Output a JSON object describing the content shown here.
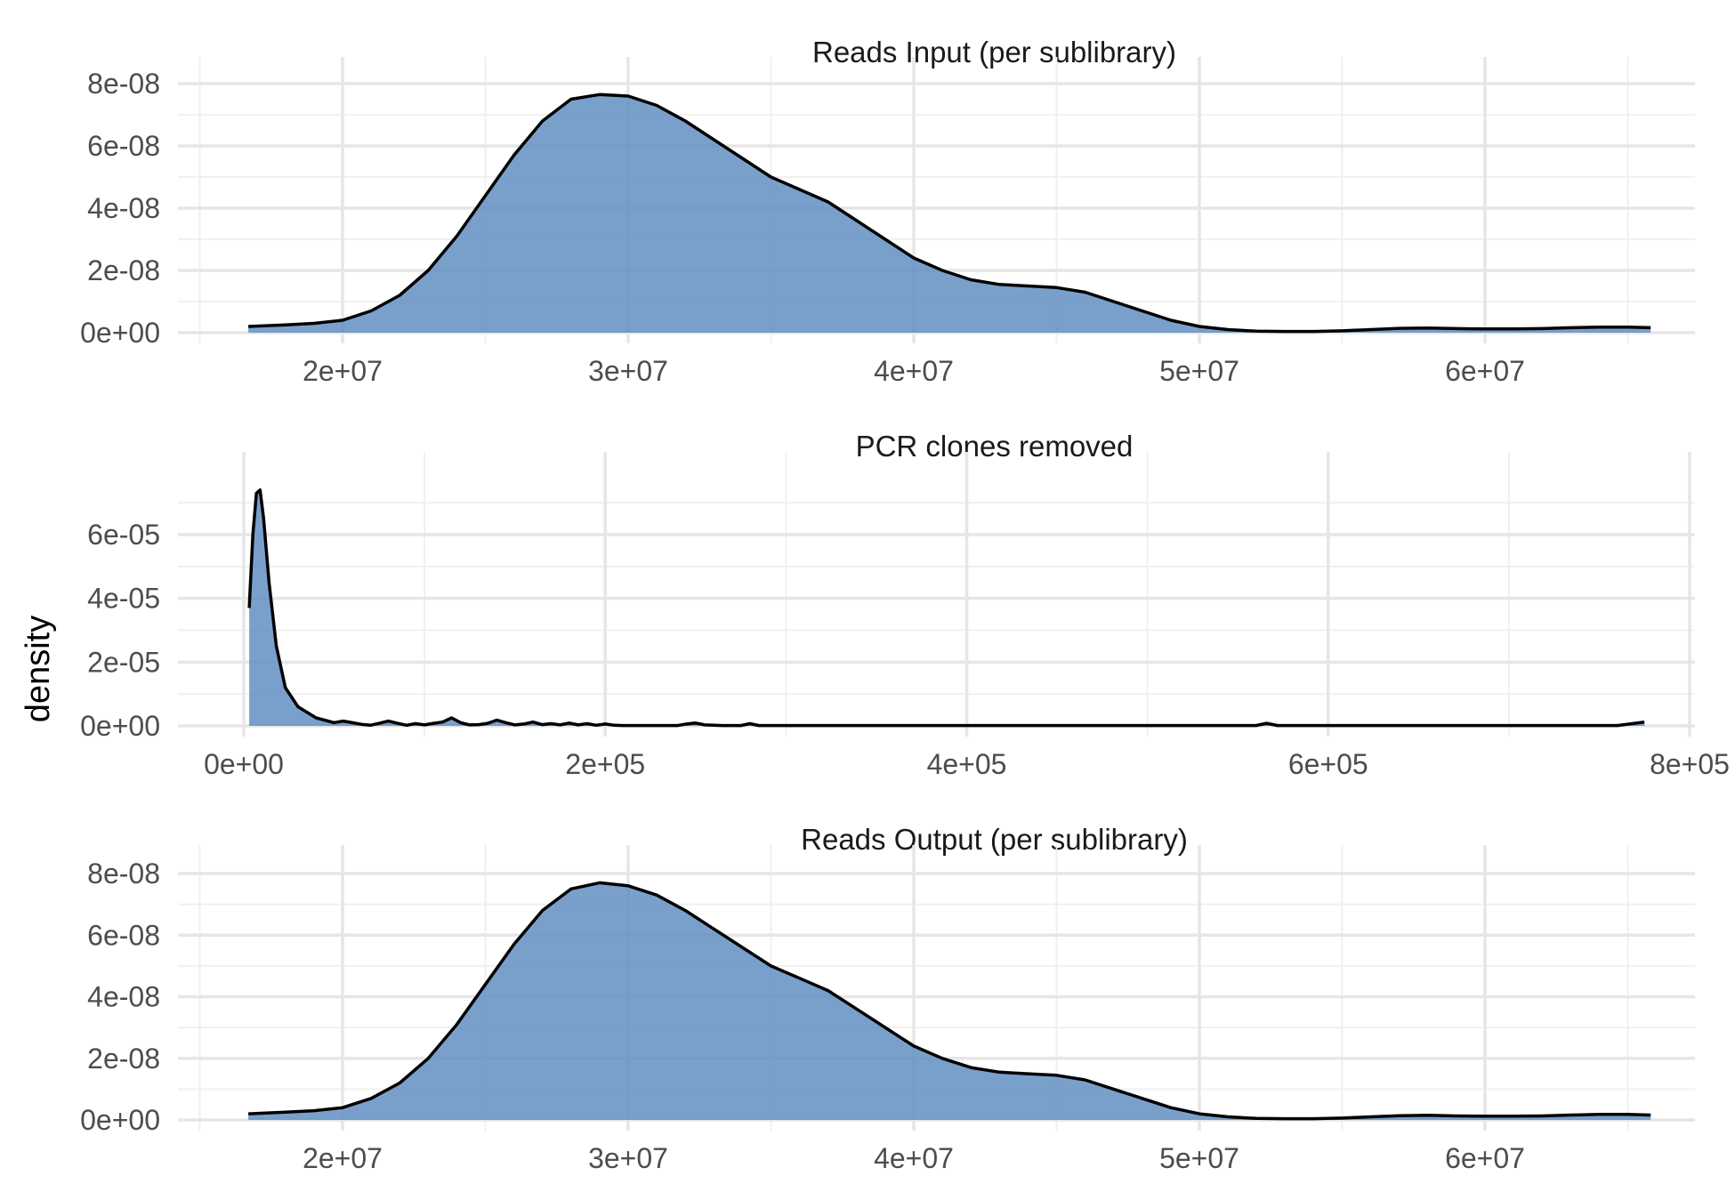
{
  "ylabel": "density",
  "style": {
    "fill": "#5b8bc0",
    "fill_opacity": 0.82,
    "line": "#000000",
    "grid": "#e6e6e6"
  },
  "chart_data": [
    {
      "type": "area",
      "title": "Reads Input (per sublibrary)",
      "xlim": [
        15000000,
        65000000
      ],
      "ylim": [
        0,
        8e-08
      ],
      "xticks": [
        20000000,
        30000000,
        40000000,
        50000000,
        60000000
      ],
      "xtick_labels": [
        "2e+07",
        "3e+07",
        "4e+07",
        "5e+07",
        "6e+07"
      ],
      "yticks": [
        0,
        2e-08,
        4e-08,
        6e-08,
        8e-08
      ],
      "ytick_labels": [
        "0e+00",
        "2e-08",
        "4e-08",
        "6e-08",
        "8e-08"
      ],
      "x": [
        16700000,
        18000000,
        19000000,
        20000000,
        21000000,
        22000000,
        23000000,
        24000000,
        25000000,
        26000000,
        27000000,
        28000000,
        29000000,
        30000000,
        31000000,
        32000000,
        33000000,
        34000000,
        35000000,
        36000000,
        37000000,
        38000000,
        39000000,
        40000000,
        41000000,
        42000000,
        43000000,
        44000000,
        45000000,
        46000000,
        47000000,
        48000000,
        49000000,
        50000000,
        51000000,
        52000000,
        53000000,
        54000000,
        55000000,
        56000000,
        57000000,
        58000000,
        59000000,
        60000000,
        61000000,
        62000000,
        63000000,
        64000000,
        65000000,
        65800000
      ],
      "y": [
        2e-09,
        2.5e-09,
        3e-09,
        4e-09,
        7e-09,
        1.2e-08,
        2e-08,
        3.1e-08,
        4.4e-08,
        5.7e-08,
        6.8e-08,
        7.5e-08,
        7.65e-08,
        7.6e-08,
        7.3e-08,
        6.8e-08,
        6.2e-08,
        5.6e-08,
        5e-08,
        4.6e-08,
        4.2e-08,
        3.6e-08,
        3e-08,
        2.4e-08,
        2e-08,
        1.7e-08,
        1.55e-08,
        1.5e-08,
        1.45e-08,
        1.3e-08,
        1e-08,
        7e-09,
        4e-09,
        2e-09,
        1e-09,
        5e-10,
        4e-10,
        4e-10,
        6e-10,
        1e-09,
        1.4e-09,
        1.5e-09,
        1.3e-09,
        1.2e-09,
        1.2e-09,
        1.3e-09,
        1.6e-09,
        1.8e-09,
        1.8e-09,
        1.6e-09
      ]
    },
    {
      "type": "area",
      "title": "PCR clones removed",
      "xlim": [
        0,
        800000
      ],
      "ylim": [
        0,
        7.6e-05
      ],
      "xticks": [
        0,
        200000,
        400000,
        600000,
        800000
      ],
      "xtick_labels": [
        "0e+00",
        "2e+05",
        "4e+05",
        "6e+05",
        "8e+05"
      ],
      "yticks": [
        0,
        2e-05,
        4e-05,
        6e-05
      ],
      "ytick_labels": [
        "0e+00",
        "2e-05",
        "4e-05",
        "6e-05"
      ],
      "x": [
        3000,
        5000,
        7000,
        9000,
        11000,
        14000,
        18000,
        23000,
        30000,
        40000,
        50000,
        55000,
        60000,
        65000,
        70000,
        75000,
        80000,
        85000,
        90000,
        95000,
        100000,
        105000,
        110000,
        115000,
        120000,
        125000,
        130000,
        135000,
        140000,
        145000,
        150000,
        155000,
        160000,
        165000,
        170000,
        175000,
        180000,
        185000,
        190000,
        195000,
        200000,
        205000,
        210000,
        220000,
        240000,
        245000,
        250000,
        255000,
        265000,
        275000,
        280000,
        285000,
        300000,
        400000,
        500000,
        560000,
        566000,
        572000,
        600000,
        700000,
        760000,
        775000
      ],
      "y": [
        3.7e-05,
        6e-05,
        7.3e-05,
        7.4e-05,
        6.5e-05,
        4.5e-05,
        2.5e-05,
        1.2e-05,
        6e-06,
        2.5e-06,
        1e-06,
        1.5e-06,
        1e-06,
        5e-07,
        2e-07,
        8e-07,
        1.5e-06,
        8e-07,
        2e-07,
        7e-07,
        3e-07,
        8e-07,
        1.2e-06,
        2.5e-06,
        1e-06,
        3e-07,
        4e-07,
        8e-07,
        1.8e-06,
        1e-06,
        3e-07,
        6e-07,
        1.2e-06,
        4e-07,
        7e-07,
        3e-07,
        9e-07,
        3e-07,
        7e-07,
        2e-07,
        6e-07,
        2e-07,
        1e-07,
        1e-07,
        1e-07,
        6e-07,
        9e-07,
        3e-07,
        1e-07,
        1e-07,
        7e-07,
        1e-07,
        1e-07,
        1e-07,
        1e-07,
        1e-07,
        8e-07,
        1e-07,
        1e-07,
        1e-07,
        1e-07,
        1.2e-06
      ]
    },
    {
      "type": "area",
      "title": "Reads Output (per sublibrary)",
      "xlim": [
        15000000,
        65000000
      ],
      "ylim": [
        0,
        8e-08
      ],
      "xticks": [
        20000000,
        30000000,
        40000000,
        50000000,
        60000000
      ],
      "xtick_labels": [
        "2e+07",
        "3e+07",
        "4e+07",
        "5e+07",
        "6e+07"
      ],
      "yticks": [
        0,
        2e-08,
        4e-08,
        6e-08,
        8e-08
      ],
      "ytick_labels": [
        "0e+00",
        "2e-08",
        "4e-08",
        "6e-08",
        "8e-08"
      ],
      "x": [
        16700000,
        18000000,
        19000000,
        20000000,
        21000000,
        22000000,
        23000000,
        24000000,
        25000000,
        26000000,
        27000000,
        28000000,
        29000000,
        30000000,
        31000000,
        32000000,
        33000000,
        34000000,
        35000000,
        36000000,
        37000000,
        38000000,
        39000000,
        40000000,
        41000000,
        42000000,
        43000000,
        44000000,
        45000000,
        46000000,
        47000000,
        48000000,
        49000000,
        50000000,
        51000000,
        52000000,
        53000000,
        54000000,
        55000000,
        56000000,
        57000000,
        58000000,
        59000000,
        60000000,
        61000000,
        62000000,
        63000000,
        64000000,
        65000000,
        65800000
      ],
      "y": [
        2e-09,
        2.5e-09,
        3e-09,
        4e-09,
        7e-09,
        1.2e-08,
        2e-08,
        3.1e-08,
        4.4e-08,
        5.7e-08,
        6.8e-08,
        7.5e-08,
        7.7e-08,
        7.6e-08,
        7.3e-08,
        6.8e-08,
        6.2e-08,
        5.6e-08,
        5e-08,
        4.6e-08,
        4.2e-08,
        3.6e-08,
        3e-08,
        2.4e-08,
        2e-08,
        1.7e-08,
        1.55e-08,
        1.5e-08,
        1.45e-08,
        1.3e-08,
        1e-08,
        7e-09,
        4e-09,
        2e-09,
        1e-09,
        5e-10,
        4e-10,
        4e-10,
        6e-10,
        1e-09,
        1.4e-09,
        1.5e-09,
        1.3e-09,
        1.2e-09,
        1.2e-09,
        1.3e-09,
        1.6e-09,
        1.8e-09,
        1.8e-09,
        1.6e-09
      ]
    }
  ]
}
